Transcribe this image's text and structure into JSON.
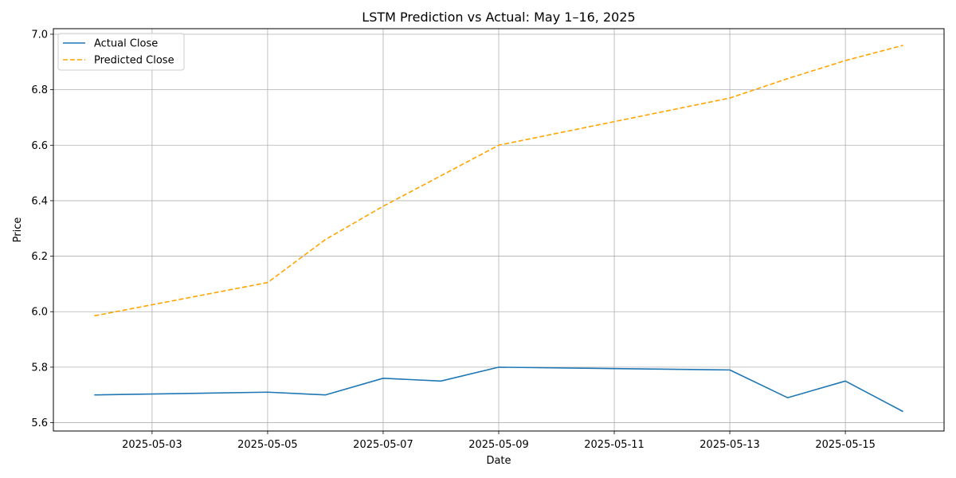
{
  "chart_data": {
    "type": "line",
    "title": "LSTM Prediction vs Actual: May 1–16, 2025",
    "xlabel": "Date",
    "ylabel": "Price",
    "ylim": [
      5.57,
      7.02
    ],
    "xlim": [
      "2025-05-01T07:00",
      "2025-05-16T17:00"
    ],
    "grid": true,
    "legend_position": "top-left",
    "x_ticks": [
      "2025-05-03",
      "2025-05-05",
      "2025-05-07",
      "2025-05-09",
      "2025-05-11",
      "2025-05-13",
      "2025-05-15"
    ],
    "y_ticks": [
      5.6,
      5.8,
      6.0,
      6.2,
      6.4,
      6.6,
      6.8,
      7.0
    ],
    "y_tick_labels": [
      "5.6",
      "5.8",
      "6.0",
      "6.2",
      "6.4",
      "6.6",
      "6.8",
      "7.0"
    ],
    "series": [
      {
        "name": "Actual Close",
        "color": "#1f77b4",
        "style": "solid",
        "x": [
          "2025-05-02",
          "2025-05-05",
          "2025-05-06",
          "2025-05-07",
          "2025-05-08",
          "2025-05-09",
          "2025-05-13",
          "2025-05-14",
          "2025-05-15",
          "2025-05-16"
        ],
        "values": [
          5.7,
          5.71,
          5.7,
          5.76,
          5.75,
          5.8,
          5.79,
          5.69,
          5.75,
          5.64
        ]
      },
      {
        "name": "Predicted Close",
        "color": "#ffa500",
        "style": "dashed",
        "x": [
          "2025-05-02",
          "2025-05-05",
          "2025-05-06",
          "2025-05-07",
          "2025-05-08",
          "2025-05-09",
          "2025-05-13",
          "2025-05-14",
          "2025-05-15",
          "2025-05-16"
        ],
        "values": [
          5.985,
          6.105,
          6.26,
          6.38,
          6.49,
          6.6,
          6.77,
          6.84,
          6.905,
          6.96
        ]
      }
    ]
  }
}
